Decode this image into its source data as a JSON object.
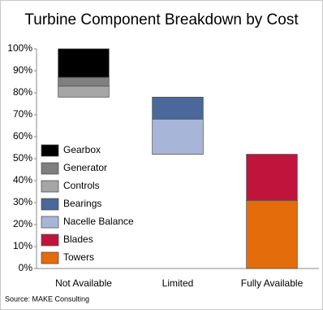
{
  "chart_data": {
    "type": "waterfall",
    "title": "Turbine Component Breakdown by Cost",
    "source": "Source: MAKE Consulting",
    "categories": [
      "Not Available",
      "Limited",
      "Fully Available"
    ],
    "series": [
      {
        "name": "Gearbox",
        "color": "#000000",
        "values": [
          13,
          null,
          null
        ]
      },
      {
        "name": "Generator",
        "color": "#7f7f7f",
        "values": [
          4,
          null,
          null
        ]
      },
      {
        "name": "Controls",
        "color": "#a6a6a6",
        "values": [
          5,
          null,
          null
        ]
      },
      {
        "name": "Bearings",
        "color": "#4a6899",
        "values": [
          null,
          10,
          null
        ]
      },
      {
        "name": "Nacelle Balance",
        "color": "#a7b6d8",
        "values": [
          null,
          16,
          null
        ]
      },
      {
        "name": "Blades",
        "color": "#c0143c",
        "values": [
          null,
          null,
          21
        ]
      },
      {
        "name": "Towers",
        "color": "#e46c0a",
        "values": [
          null,
          null,
          31
        ]
      }
    ],
    "ylim": [
      0,
      100
    ],
    "yticks": [
      {
        "value": 0,
        "label": "0%"
      },
      {
        "value": 10,
        "label": "10%"
      },
      {
        "value": 20,
        "label": "20%"
      },
      {
        "value": 30,
        "label": "30%"
      },
      {
        "value": 40,
        "label": "40%"
      },
      {
        "value": 50,
        "label": "50%"
      },
      {
        "value": 60,
        "label": "60%"
      },
      {
        "value": 70,
        "label": "70%"
      },
      {
        "value": 80,
        "label": "80%"
      },
      {
        "value": 90,
        "label": "90%"
      },
      {
        "value": 100,
        "label": "100%"
      }
    ],
    "legend": "left"
  }
}
